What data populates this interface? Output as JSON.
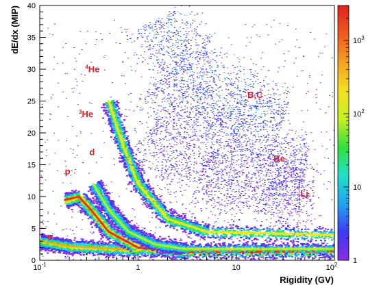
{
  "chart_data": {
    "type": "heatmap",
    "title": "",
    "xlabel": "Rigidity (GV)",
    "ylabel": "dE/dx (MIP)",
    "x_scale": "log",
    "xlim": [
      0.1,
      100
    ],
    "ylim": [
      0,
      40
    ],
    "x_ticks": [
      {
        "value": 0.1,
        "base": "10",
        "exp": "-1"
      },
      {
        "value": 1,
        "base": "1",
        "exp": ""
      },
      {
        "value": 10,
        "base": "10",
        "exp": ""
      },
      {
        "value": 100,
        "base": "10",
        "exp": "2"
      }
    ],
    "y_ticks": [
      0,
      5,
      10,
      15,
      20,
      25,
      30,
      35,
      40
    ],
    "colorbar": {
      "scale": "log",
      "range": [
        1,
        3000
      ],
      "ticks": [
        {
          "value": 1,
          "base": "1",
          "exp": ""
        },
        {
          "value": 10,
          "base": "10",
          "exp": ""
        },
        {
          "value": 100,
          "base": "10",
          "exp": "2"
        },
        {
          "value": 1000,
          "base": "10",
          "exp": "3"
        }
      ],
      "colors": [
        "#8b2be2",
        "#3b3bf5",
        "#21a6f0",
        "#20e0c8",
        "#32e03c",
        "#c8f021",
        "#f5e020",
        "#f5a020",
        "#f05a1e",
        "#e0201e"
      ]
    },
    "annotations": [
      {
        "label": "e",
        "sup": "",
        "x": 0.12,
        "y": 3.2
      },
      {
        "label": "p",
        "sup": "",
        "x": 0.18,
        "y": 13.5
      },
      {
        "label": "d",
        "sup": "",
        "x": 0.32,
        "y": 16.5
      },
      {
        "label": "He",
        "sup": "3",
        "x": 0.25,
        "y": 22.5
      },
      {
        "label": "He",
        "sup": "4",
        "x": 0.29,
        "y": 29.5
      },
      {
        "label": "B,C",
        "sup": "",
        "x": 13,
        "y": 25.5
      },
      {
        "label": "Be",
        "sup": "",
        "x": 24,
        "y": 15.5
      },
      {
        "label": "Li",
        "sup": "",
        "x": 45,
        "y": 10.0
      }
    ],
    "bands": [
      {
        "particle": "e",
        "curve": [
          [
            0.1,
            3.0
          ],
          [
            0.2,
            2.2
          ],
          [
            1,
            1.6
          ],
          [
            100,
            1.5
          ]
        ],
        "peak_level": 0.75
      },
      {
        "particle": "p",
        "curve": [
          [
            0.18,
            9.5
          ],
          [
            0.25,
            10.0
          ],
          [
            0.35,
            7.5
          ],
          [
            0.5,
            4.5
          ],
          [
            1,
            2.0
          ],
          [
            3,
            1.3
          ],
          [
            100,
            1.4
          ]
        ],
        "peak_level": 0.95
      },
      {
        "particle": "d",
        "curve": [
          [
            0.35,
            12.0
          ],
          [
            0.5,
            8.0
          ],
          [
            0.8,
            4.5
          ],
          [
            1.5,
            2.5
          ],
          [
            3,
            1.8
          ],
          [
            100,
            1.8
          ]
        ],
        "peak_level": 0.55
      },
      {
        "particle": "He",
        "curve": [
          [
            0.5,
            25.0
          ],
          [
            0.7,
            18.0
          ],
          [
            1,
            12.0
          ],
          [
            2,
            6.5
          ],
          [
            5,
            4.5
          ],
          [
            100,
            4.0
          ]
        ],
        "peak_level": 0.7
      },
      {
        "particle": "B,C",
        "curve": [
          [
            1.5,
            38.0
          ],
          [
            3,
            30.0
          ],
          [
            10,
            24.0
          ],
          [
            30,
            22.0
          ]
        ],
        "peak_level": 0.2
      },
      {
        "particle": "Be",
        "curve": [
          [
            1.5,
            28.0
          ],
          [
            5,
            20.0
          ],
          [
            20,
            15.0
          ],
          [
            50,
            14.0
          ]
        ],
        "peak_level": 0.12
      },
      {
        "particle": "Li",
        "curve": [
          [
            1.2,
            20.0
          ],
          [
            4,
            13.0
          ],
          [
            15,
            10.0
          ],
          [
            60,
            9.5
          ]
        ],
        "peak_level": 0.1
      }
    ]
  }
}
